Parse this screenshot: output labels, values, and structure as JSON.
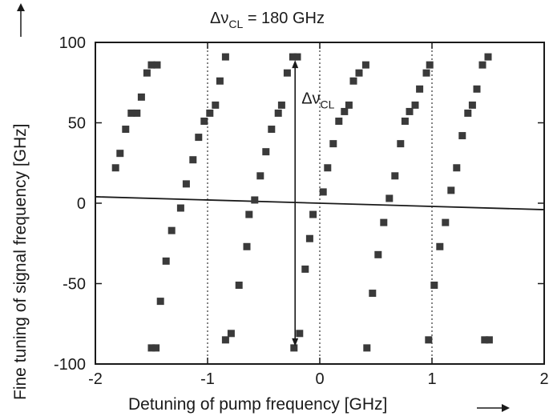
{
  "chart_data": {
    "type": "scatter",
    "title_main": "Δν",
    "title_sub": "CL",
    "title_rest": " = 180 GHz",
    "xlabel": "Detuning of pump frequency [GHz]",
    "ylabel": "Fine tuning of signal frequency [GHz]",
    "xlim": [
      -2,
      2
    ],
    "ylim": [
      -100,
      100
    ],
    "x_ticks": [
      -2,
      -1,
      0,
      1,
      2
    ],
    "x_tick_labels": [
      "-2",
      "-1",
      "0",
      "1",
      "2"
    ],
    "y_ticks": [
      -100,
      -50,
      0,
      50,
      100
    ],
    "y_tick_labels": [
      "-100",
      "-50",
      "0",
      "50",
      "100"
    ],
    "grid": false,
    "vertical_dotted_lines_x": [
      -1,
      0,
      1
    ],
    "trend_line": {
      "x": [
        -2,
        2
      ],
      "y": [
        4,
        -4
      ]
    },
    "annotation": {
      "label_main": "Δν",
      "label_sub": "CL",
      "x": -0.22,
      "y_from": 89,
      "y_to": -89
    },
    "series": [
      {
        "points": [
          [
            -1.82,
            22
          ],
          [
            -1.78,
            31
          ],
          [
            -1.73,
            46
          ],
          [
            -1.68,
            56
          ],
          [
            -1.63,
            56
          ],
          [
            -1.59,
            66
          ],
          [
            -1.54,
            81
          ],
          [
            -1.5,
            86
          ],
          [
            -1.45,
            86
          ],
          [
            -1.5,
            -90
          ],
          [
            -1.46,
            -90
          ],
          [
            -1.42,
            -61
          ],
          [
            -1.37,
            -36
          ],
          [
            -1.32,
            -17
          ],
          [
            -1.24,
            -3
          ],
          [
            -1.19,
            12
          ],
          [
            -1.13,
            27
          ],
          [
            -1.08,
            41
          ],
          [
            -1.03,
            51
          ],
          [
            -0.98,
            56
          ],
          [
            -0.93,
            61
          ],
          [
            -0.89,
            76
          ],
          [
            -0.84,
            91
          ],
          [
            -0.84,
            -85
          ],
          [
            -0.79,
            -81
          ],
          [
            -0.72,
            -51
          ],
          [
            -0.65,
            -27
          ],
          [
            -0.63,
            -7
          ],
          [
            -0.58,
            2
          ],
          [
            -0.53,
            17
          ],
          [
            -0.48,
            32
          ],
          [
            -0.43,
            46
          ],
          [
            -0.37,
            56
          ],
          [
            -0.34,
            61
          ],
          [
            -0.29,
            81
          ],
          [
            -0.24,
            91
          ],
          [
            -0.2,
            91
          ],
          [
            -0.23,
            -90
          ],
          [
            -0.18,
            -81
          ],
          [
            -0.13,
            -41
          ],
          [
            -0.09,
            -22
          ],
          [
            -0.06,
            -7
          ],
          [
            0.03,
            7
          ],
          [
            0.07,
            22
          ],
          [
            0.12,
            37
          ],
          [
            0.17,
            51
          ],
          [
            0.22,
            57
          ],
          [
            0.26,
            61
          ],
          [
            0.3,
            76
          ],
          [
            0.35,
            81
          ],
          [
            0.41,
            86
          ],
          [
            0.42,
            -90
          ],
          [
            0.47,
            -56
          ],
          [
            0.52,
            -32
          ],
          [
            0.57,
            -12
          ],
          [
            0.62,
            3
          ],
          [
            0.67,
            17
          ],
          [
            0.72,
            37
          ],
          [
            0.76,
            51
          ],
          [
            0.8,
            57
          ],
          [
            0.85,
            61
          ],
          [
            0.89,
            71
          ],
          [
            0.95,
            81
          ],
          [
            0.98,
            86
          ],
          [
            0.97,
            -85
          ],
          [
            1.02,
            -51
          ],
          [
            1.07,
            -27
          ],
          [
            1.12,
            -12
          ],
          [
            1.17,
            8
          ],
          [
            1.22,
            22
          ],
          [
            1.27,
            42
          ],
          [
            1.32,
            56
          ],
          [
            1.36,
            61
          ],
          [
            1.4,
            71
          ],
          [
            1.45,
            86
          ],
          [
            1.5,
            91
          ],
          [
            1.47,
            -85
          ],
          [
            1.51,
            -85
          ]
        ]
      }
    ]
  }
}
